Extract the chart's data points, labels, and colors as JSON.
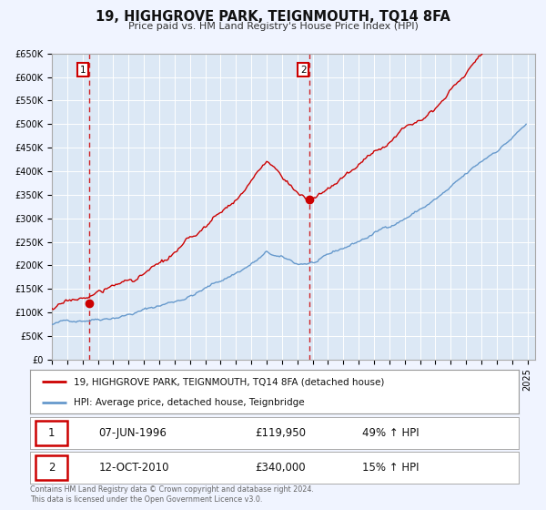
{
  "title": "19, HIGHGROVE PARK, TEIGNMOUTH, TQ14 8FA",
  "subtitle": "Price paid vs. HM Land Registry's House Price Index (HPI)",
  "bg_color": "#f0f4ff",
  "plot_bg_color": "#dce8f5",
  "grid_color": "#ffffff",
  "red_line_color": "#cc0000",
  "blue_line_color": "#6699cc",
  "sale1_date_num": 1996.44,
  "sale1_price": 119950,
  "sale2_date_num": 2010.78,
  "sale2_price": 340000,
  "legend_line1": "19, HIGHGROVE PARK, TEIGNMOUTH, TQ14 8FA (detached house)",
  "legend_line2": "HPI: Average price, detached house, Teignbridge",
  "table_row1": [
    "1",
    "07-JUN-1996",
    "£119,950",
    "49% ↑ HPI"
  ],
  "table_row2": [
    "2",
    "12-OCT-2010",
    "£340,000",
    "15% ↑ HPI"
  ],
  "footer": "Contains HM Land Registry data © Crown copyright and database right 2024.\nThis data is licensed under the Open Government Licence v3.0.",
  "ylim": [
    0,
    650000
  ],
  "xlim_start": 1994.0,
  "xlim_end": 2025.5,
  "yticks": [
    0,
    50000,
    100000,
    150000,
    200000,
    250000,
    300000,
    350000,
    400000,
    450000,
    500000,
    550000,
    600000,
    650000
  ],
  "ytick_labels": [
    "£0",
    "£50K",
    "£100K",
    "£150K",
    "£200K",
    "£250K",
    "£300K",
    "£350K",
    "£400K",
    "£450K",
    "£500K",
    "£550K",
    "£600K",
    "£650K"
  ],
  "xticks": [
    1994,
    1995,
    1996,
    1997,
    1998,
    1999,
    2000,
    2001,
    2002,
    2003,
    2004,
    2005,
    2006,
    2007,
    2008,
    2009,
    2010,
    2011,
    2012,
    2013,
    2014,
    2015,
    2016,
    2017,
    2018,
    2019,
    2020,
    2021,
    2022,
    2023,
    2024,
    2025
  ]
}
